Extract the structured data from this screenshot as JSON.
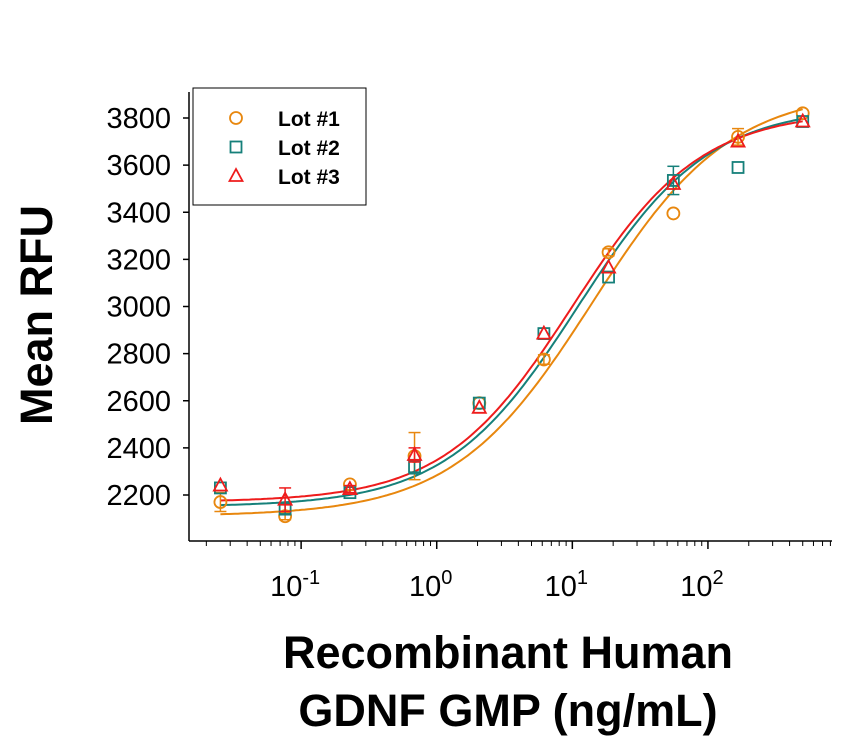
{
  "chart_data": {
    "type": "scatter",
    "title": "",
    "xlabel_lines": [
      "Recombinant Human",
      "GDNF GMP (ng/mL)"
    ],
    "ylabel": "Mean RFU",
    "xscale": "log",
    "xlim": [
      0.0149,
      822
    ],
    "ylim": [
      2060,
      3910
    ],
    "yticks": [
      2200,
      2400,
      2600,
      2800,
      3000,
      3200,
      3400,
      3600,
      3800
    ],
    "xticks": [
      {
        "value": 0.1,
        "base": "10",
        "exp": "-1"
      },
      {
        "value": 1,
        "base": "10",
        "exp": "0"
      },
      {
        "value": 10,
        "base": "10",
        "exp": "1"
      },
      {
        "value": 100,
        "base": "10",
        "exp": "2"
      }
    ],
    "grid": false,
    "legend_position": "top-left",
    "x": [
      0.0254,
      0.0762,
      0.229,
      0.686,
      2.06,
      6.17,
      18.5,
      55.6,
      166.7,
      500
    ],
    "series": [
      {
        "name": "Lot #1",
        "marker": "circle",
        "color": "#e8870e",
        "values": [
          2170,
          2110,
          2245,
          2365,
          2590,
          2775,
          3230,
          3395,
          3720,
          3820
        ],
        "errors": [
          40,
          15,
          10,
          100,
          10,
          20,
          15,
          10,
          35,
          10
        ],
        "fit": {
          "bottom": 2110,
          "top": 3920,
          "ec50": 14,
          "hill": 0.85
        }
      },
      {
        "name": "Lot #2",
        "marker": "square",
        "color": "#16807a",
        "values": [
          2230,
          2140,
          2210,
          2320,
          2590,
          2885,
          3125,
          3535,
          3590,
          3785
        ],
        "errors": [
          10,
          20,
          10,
          30,
          10,
          10,
          10,
          60,
          10,
          10
        ],
        "fit": {
          "bottom": 2150,
          "top": 3850,
          "ec50": 11,
          "hill": 0.9
        }
      },
      {
        "name": "Lot #3",
        "marker": "triangle",
        "color": "#ee1c1c",
        "values": [
          2240,
          2180,
          2225,
          2370,
          2570,
          2885,
          3165,
          3520,
          3700,
          3785
        ],
        "errors": [
          10,
          50,
          15,
          30,
          10,
          10,
          10,
          10,
          10,
          10
        ],
        "fit": {
          "bottom": 2170,
          "top": 3830,
          "ec50": 10,
          "hill": 0.92
        }
      }
    ]
  }
}
